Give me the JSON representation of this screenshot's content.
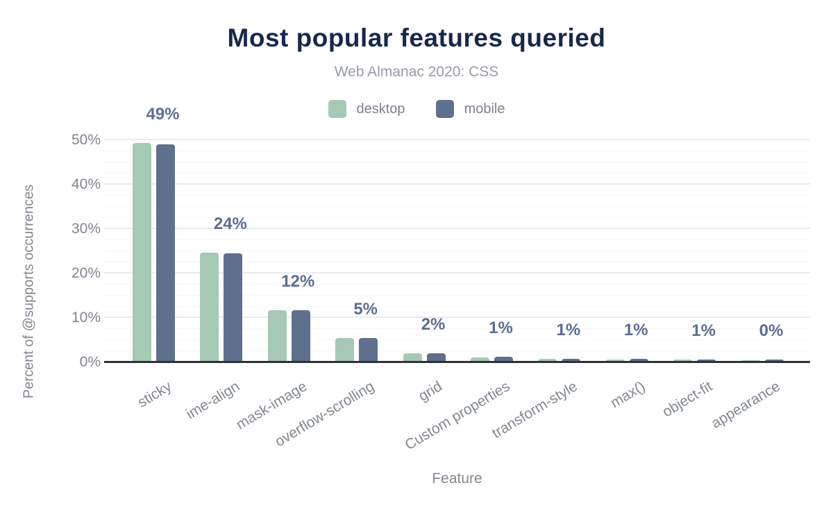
{
  "header": {
    "title": "Most popular features queried",
    "subtitle": "Web Almanac 2020: CSS"
  },
  "axes": {
    "x_title": "Feature",
    "y_title": "Percent of @supports occurrences",
    "y_tick_labels": [
      "0%",
      "10%",
      "20%",
      "30%",
      "40%",
      "50%"
    ]
  },
  "colors": {
    "desktop": "#a6c9b6",
    "mobile": "#5e708e",
    "title": "#16294c",
    "subtitle_text": "#969ba5",
    "axis_text": "#82878f",
    "value_label": "#5b6e93",
    "axis_line": "#2f3035",
    "major_gridline": "#ebebed",
    "minor_gridline": "#f6f6f8",
    "background": "#ffffff"
  },
  "chart_data": {
    "type": "bar",
    "title": "Most popular features queried",
    "subtitle": "Web Almanac 2020: CSS",
    "xlabel": "Feature",
    "ylabel": "Percent of @supports occurrences",
    "categories": [
      "sticky",
      "ime-align",
      "mask-image",
      "overflow-scrolling",
      "grid",
      "Custom properties",
      "transform-style",
      "max()",
      "object-fit",
      "appearance"
    ],
    "series": [
      {
        "name": "desktop",
        "color": "#a6c9b6",
        "values": [
          49.2,
          24.6,
          11.6,
          5.3,
          1.8,
          1.0,
          0.7,
          0.4,
          0.4,
          0.2
        ]
      },
      {
        "name": "mobile",
        "color": "#5e708e",
        "values": [
          48.9,
          24.3,
          11.6,
          5.3,
          1.9,
          1.1,
          0.7,
          0.6,
          0.5,
          0.4
        ]
      }
    ],
    "bar_labels": [
      "49%",
      "24%",
      "12%",
      "5%",
      "2%",
      "1%",
      "1%",
      "1%",
      "1%",
      "0%"
    ],
    "y_ticks": [
      0,
      10,
      20,
      30,
      40,
      50
    ],
    "y_tick_labels": [
      "0%",
      "10%",
      "20%",
      "30%",
      "40%",
      "50%"
    ],
    "ylim": [
      0,
      50
    ],
    "grid": {
      "major_step": 10,
      "minor_step": 2.5,
      "visible": true
    },
    "legend_position": "top"
  }
}
